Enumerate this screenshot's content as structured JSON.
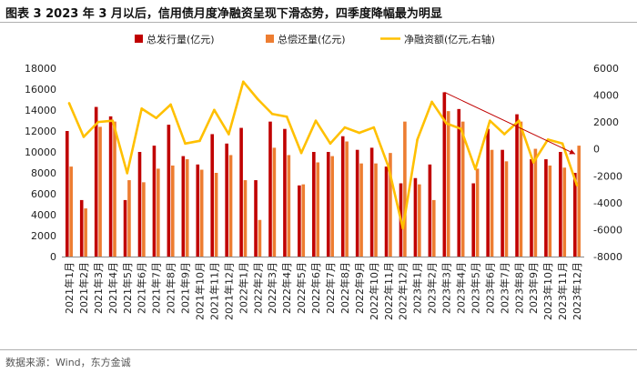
{
  "header": {
    "title": "图表 3  2023 年 3 月以后，信用债月度净融资呈现下滑态势，四季度降幅最为明显"
  },
  "footer": {
    "source": "数据来源：Wind，东方金诚"
  },
  "colors": {
    "issue": "#c00000",
    "repay": "#ed7d31",
    "net": "#ffc000",
    "trend": "#c00000"
  },
  "chart_data": {
    "type": "bar",
    "title": "",
    "categories": [
      "2021年1月",
      "2021年2月",
      "2021年3月",
      "2021年4月",
      "2021年5月",
      "2021年6月",
      "2021年7月",
      "2021年8月",
      "2021年9月",
      "2021年10月",
      "2021年11月",
      "2021年12月",
      "2022年1月",
      "2022年2月",
      "2022年3月",
      "2022年4月",
      "2022年5月",
      "2022年6月",
      "2022年7月",
      "2022年8月",
      "2022年9月",
      "2022年10月",
      "2022年11月",
      "2022年12月",
      "2023年1月",
      "2023年2月",
      "2023年3月",
      "2023年4月",
      "2023年5月",
      "2023年6月",
      "2023年7月",
      "2023年8月",
      "2023年9月",
      "2023年10月",
      "2023年11月",
      "2023年12月"
    ],
    "series": [
      {
        "name": "总发行量(亿元)",
        "axis": "left",
        "kind": "bar",
        "values": [
          12000,
          5400,
          14300,
          13400,
          5400,
          10000,
          10600,
          12600,
          9600,
          8800,
          11700,
          10800,
          12300,
          7300,
          12900,
          12200,
          6800,
          10000,
          10000,
          11500,
          10200,
          10400,
          8600,
          7000,
          7500,
          8800,
          15700,
          14100,
          7000,
          12200,
          10200,
          13600,
          9300,
          9300,
          10000,
          8000
        ]
      },
      {
        "name": "总偿还量(亿元)",
        "axis": "left",
        "kind": "bar",
        "values": [
          8600,
          4600,
          12400,
          12900,
          7300,
          7100,
          8400,
          8700,
          9300,
          8300,
          8000,
          9700,
          7300,
          3500,
          10400,
          9700,
          6900,
          9000,
          9600,
          11000,
          8900,
          8900,
          9900,
          12900,
          6900,
          5400,
          13900,
          12900,
          8400,
          10200,
          9100,
          12900,
          10300,
          8700,
          8500,
          10600
        ]
      },
      {
        "name": "净融资额(亿元,右轴)",
        "axis": "right",
        "kind": "line",
        "values": [
          3400,
          900,
          2000,
          2100,
          -1800,
          3000,
          2300,
          3300,
          400,
          600,
          2900,
          1100,
          5000,
          3700,
          2600,
          2400,
          -300,
          2100,
          400,
          1600,
          1200,
          1600,
          -1300,
          -5900,
          700,
          3500,
          1900,
          1500,
          -1500,
          2100,
          1100,
          2100,
          -1000,
          700,
          400,
          -2700
        ]
      }
    ],
    "y_left": {
      "min": 0,
      "max": 18000,
      "step": 2000,
      "ticks": [
        "0",
        "2000",
        "4000",
        "6000",
        "8000",
        "10000",
        "12000",
        "14000",
        "16000",
        "18000"
      ]
    },
    "y_right": {
      "min": -8000,
      "max": 6000,
      "step": 2000,
      "ticks": [
        "-8000",
        "-6000",
        "-4000",
        "-2000",
        "0",
        "2000",
        "4000",
        "6000"
      ]
    },
    "trend_arrow": {
      "from_category": "2023年3月",
      "from_value": 15700,
      "to_category": "2023年12月",
      "to_value": 9800,
      "axis": "left"
    },
    "legend": {
      "position": "top"
    }
  }
}
